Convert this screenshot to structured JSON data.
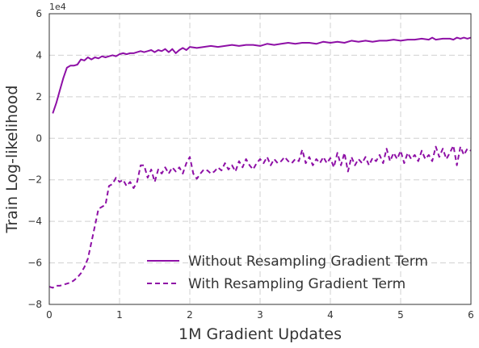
{
  "chart_data": {
    "type": "line",
    "xlabel": "1M Gradient Updates",
    "ylabel": "Train Log-likelihood",
    "y_offset_label": "1e4",
    "xlim": [
      0,
      6
    ],
    "ylim": [
      -8,
      6
    ],
    "x_ticks": [
      "0",
      "1",
      "2",
      "3",
      "4",
      "5",
      "6"
    ],
    "y_ticks": [
      "−8",
      "−6",
      "−4",
      "−2",
      "0",
      "2",
      "4",
      "6"
    ],
    "grid": true,
    "legend_position": "lower-right",
    "color": "#8e10a6",
    "series": [
      {
        "name": "Without Resampling Gradient Term",
        "style": "solid",
        "points": [
          [
            0.05,
            1.2
          ],
          [
            0.1,
            1.7
          ],
          [
            0.15,
            2.3
          ],
          [
            0.2,
            2.9
          ],
          [
            0.25,
            3.4
          ],
          [
            0.3,
            3.5
          ],
          [
            0.35,
            3.5
          ],
          [
            0.4,
            3.55
          ],
          [
            0.45,
            3.8
          ],
          [
            0.5,
            3.75
          ],
          [
            0.55,
            3.9
          ],
          [
            0.6,
            3.8
          ],
          [
            0.65,
            3.9
          ],
          [
            0.7,
            3.85
          ],
          [
            0.75,
            3.95
          ],
          [
            0.8,
            3.9
          ],
          [
            0.85,
            3.95
          ],
          [
            0.9,
            4.0
          ],
          [
            0.95,
            3.95
          ],
          [
            1.0,
            4.05
          ],
          [
            1.05,
            4.1
          ],
          [
            1.1,
            4.05
          ],
          [
            1.15,
            4.1
          ],
          [
            1.2,
            4.1
          ],
          [
            1.25,
            4.15
          ],
          [
            1.3,
            4.2
          ],
          [
            1.35,
            4.15
          ],
          [
            1.4,
            4.2
          ],
          [
            1.45,
            4.25
          ],
          [
            1.5,
            4.15
          ],
          [
            1.55,
            4.25
          ],
          [
            1.6,
            4.2
          ],
          [
            1.65,
            4.3
          ],
          [
            1.7,
            4.15
          ],
          [
            1.75,
            4.3
          ],
          [
            1.8,
            4.1
          ],
          [
            1.85,
            4.25
          ],
          [
            1.9,
            4.35
          ],
          [
            1.95,
            4.25
          ],
          [
            2.0,
            4.4
          ],
          [
            2.1,
            4.35
          ],
          [
            2.2,
            4.4
          ],
          [
            2.3,
            4.45
          ],
          [
            2.4,
            4.4
          ],
          [
            2.5,
            4.45
          ],
          [
            2.6,
            4.5
          ],
          [
            2.7,
            4.45
          ],
          [
            2.8,
            4.5
          ],
          [
            2.9,
            4.5
          ],
          [
            3.0,
            4.45
          ],
          [
            3.1,
            4.55
          ],
          [
            3.2,
            4.5
          ],
          [
            3.3,
            4.55
          ],
          [
            3.4,
            4.6
          ],
          [
            3.5,
            4.55
          ],
          [
            3.6,
            4.6
          ],
          [
            3.7,
            4.6
          ],
          [
            3.8,
            4.55
          ],
          [
            3.9,
            4.65
          ],
          [
            4.0,
            4.6
          ],
          [
            4.1,
            4.65
          ],
          [
            4.2,
            4.6
          ],
          [
            4.3,
            4.7
          ],
          [
            4.4,
            4.65
          ],
          [
            4.5,
            4.7
          ],
          [
            4.6,
            4.65
          ],
          [
            4.7,
            4.7
          ],
          [
            4.8,
            4.7
          ],
          [
            4.9,
            4.75
          ],
          [
            5.0,
            4.7
          ],
          [
            5.1,
            4.75
          ],
          [
            5.2,
            4.75
          ],
          [
            5.3,
            4.8
          ],
          [
            5.4,
            4.75
          ],
          [
            5.45,
            4.85
          ],
          [
            5.5,
            4.75
          ],
          [
            5.6,
            4.8
          ],
          [
            5.7,
            4.8
          ],
          [
            5.75,
            4.75
          ],
          [
            5.8,
            4.85
          ],
          [
            5.85,
            4.8
          ],
          [
            5.9,
            4.85
          ],
          [
            5.95,
            4.8
          ],
          [
            6.0,
            4.85
          ]
        ]
      },
      {
        "name": "With Resampling Gradient Term",
        "style": "dashed",
        "points": [
          [
            0.0,
            -7.15
          ],
          [
            0.05,
            -7.2
          ],
          [
            0.1,
            -7.1
          ],
          [
            0.15,
            -7.1
          ],
          [
            0.2,
            -7.05
          ],
          [
            0.25,
            -7.0
          ],
          [
            0.3,
            -6.95
          ],
          [
            0.35,
            -6.85
          ],
          [
            0.4,
            -6.7
          ],
          [
            0.45,
            -6.5
          ],
          [
            0.5,
            -6.2
          ],
          [
            0.55,
            -5.8
          ],
          [
            0.6,
            -5.0
          ],
          [
            0.65,
            -4.2
          ],
          [
            0.7,
            -3.4
          ],
          [
            0.75,
            -3.3
          ],
          [
            0.8,
            -3.2
          ],
          [
            0.85,
            -2.3
          ],
          [
            0.9,
            -2.2
          ],
          [
            0.95,
            -1.9
          ],
          [
            1.0,
            -2.1
          ],
          [
            1.05,
            -2.0
          ],
          [
            1.1,
            -2.3
          ],
          [
            1.15,
            -2.1
          ],
          [
            1.2,
            -2.4
          ],
          [
            1.25,
            -2.1
          ],
          [
            1.3,
            -1.3
          ],
          [
            1.35,
            -1.3
          ],
          [
            1.4,
            -1.9
          ],
          [
            1.45,
            -1.5
          ],
          [
            1.5,
            -2.1
          ],
          [
            1.55,
            -1.5
          ],
          [
            1.6,
            -1.7
          ],
          [
            1.65,
            -1.4
          ],
          [
            1.7,
            -1.7
          ],
          [
            1.75,
            -1.4
          ],
          [
            1.8,
            -1.6
          ],
          [
            1.85,
            -1.4
          ],
          [
            1.9,
            -1.7
          ],
          [
            1.95,
            -1.2
          ],
          [
            2.0,
            -0.9
          ],
          [
            2.05,
            -1.7
          ],
          [
            2.1,
            -1.95
          ],
          [
            2.15,
            -1.7
          ],
          [
            2.2,
            -1.5
          ],
          [
            2.25,
            -1.55
          ],
          [
            2.3,
            -1.7
          ],
          [
            2.35,
            -1.6
          ],
          [
            2.4,
            -1.4
          ],
          [
            2.45,
            -1.55
          ],
          [
            2.5,
            -1.2
          ],
          [
            2.55,
            -1.5
          ],
          [
            2.6,
            -1.3
          ],
          [
            2.65,
            -1.6
          ],
          [
            2.7,
            -1.1
          ],
          [
            2.75,
            -1.4
          ],
          [
            2.8,
            -1.0
          ],
          [
            2.85,
            -1.3
          ],
          [
            2.9,
            -1.5
          ],
          [
            2.95,
            -1.2
          ],
          [
            3.0,
            -1.0
          ],
          [
            3.05,
            -1.2
          ],
          [
            3.1,
            -0.9
          ],
          [
            3.15,
            -1.3
          ],
          [
            3.2,
            -1.0
          ],
          [
            3.25,
            -1.2
          ],
          [
            3.3,
            -1.1
          ],
          [
            3.35,
            -0.9
          ],
          [
            3.4,
            -1.1
          ],
          [
            3.45,
            -1.2
          ],
          [
            3.5,
            -1.0
          ],
          [
            3.55,
            -1.1
          ],
          [
            3.6,
            -0.55
          ],
          [
            3.65,
            -1.2
          ],
          [
            3.7,
            -0.9
          ],
          [
            3.75,
            -1.3
          ],
          [
            3.8,
            -1.0
          ],
          [
            3.85,
            -1.2
          ],
          [
            3.9,
            -0.9
          ],
          [
            3.95,
            -1.2
          ],
          [
            4.0,
            -0.95
          ],
          [
            4.05,
            -1.4
          ],
          [
            4.1,
            -0.7
          ],
          [
            4.15,
            -1.3
          ],
          [
            4.2,
            -0.7
          ],
          [
            4.25,
            -1.6
          ],
          [
            4.3,
            -0.9
          ],
          [
            4.35,
            -1.3
          ],
          [
            4.4,
            -1.0
          ],
          [
            4.45,
            -1.2
          ],
          [
            4.5,
            -0.9
          ],
          [
            4.55,
            -1.3
          ],
          [
            4.6,
            -0.95
          ],
          [
            4.65,
            -1.1
          ],
          [
            4.7,
            -0.8
          ],
          [
            4.75,
            -1.2
          ],
          [
            4.8,
            -0.5
          ],
          [
            4.85,
            -1.1
          ],
          [
            4.9,
            -0.7
          ],
          [
            4.95,
            -1.0
          ],
          [
            5.0,
            -0.6
          ],
          [
            5.05,
            -1.2
          ],
          [
            5.1,
            -0.7
          ],
          [
            5.15,
            -1.0
          ],
          [
            5.2,
            -0.8
          ],
          [
            5.25,
            -1.1
          ],
          [
            5.3,
            -0.6
          ],
          [
            5.35,
            -1.0
          ],
          [
            5.4,
            -0.8
          ],
          [
            5.45,
            -1.1
          ],
          [
            5.5,
            -0.4
          ],
          [
            5.55,
            -0.9
          ],
          [
            5.6,
            -0.5
          ],
          [
            5.65,
            -1.0
          ],
          [
            5.7,
            -0.7
          ],
          [
            5.75,
            -0.35
          ],
          [
            5.8,
            -1.3
          ],
          [
            5.85,
            -0.4
          ],
          [
            5.9,
            -0.8
          ],
          [
            5.95,
            -0.5
          ],
          [
            6.0,
            -0.6
          ]
        ]
      }
    ]
  }
}
